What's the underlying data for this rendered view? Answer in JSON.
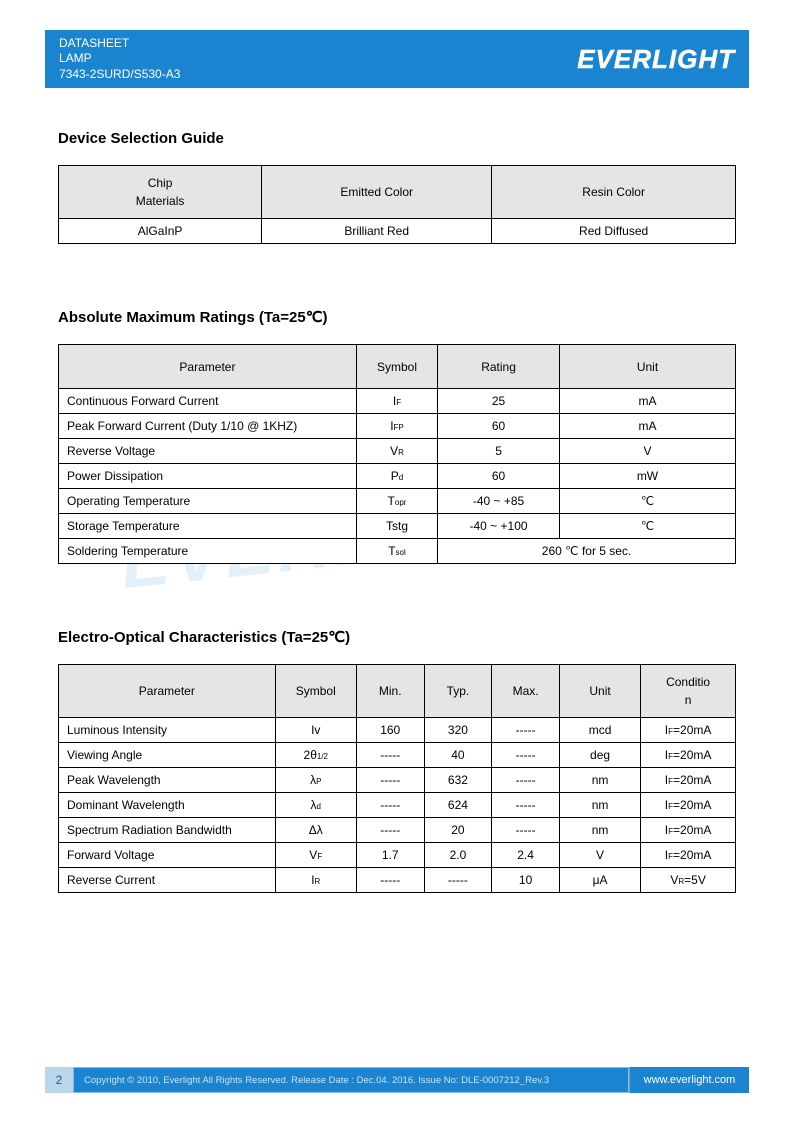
{
  "header": {
    "line1": "DATASHEET",
    "line2": "LAMP",
    "line3": "7343-2SURD/S530-A3",
    "logo": "EVERLIGHT"
  },
  "watermark": "EVERLIGHT",
  "section1": {
    "title": "Device Selection Guide",
    "columns": [
      "Chip\nMaterials",
      "Emitted Color",
      "Resin Color"
    ],
    "rows": [
      [
        "AlGaInP",
        "Brilliant Red",
        "Red Diffused"
      ]
    ],
    "col_widths": [
      "30%",
      "34%",
      "36%"
    ]
  },
  "section2": {
    "title": "Absolute Maximum Ratings (Ta=25℃)",
    "columns": [
      "Parameter",
      "Symbol",
      "Rating",
      "Unit"
    ],
    "rows": [
      {
        "p": "Continuous Forward Current",
        "s": "I",
        "sub": "F",
        "r": "25",
        "u": "mA",
        "span": false
      },
      {
        "p": "Peak Forward Current (Duty 1/10 @ 1KHZ)",
        "s": "I",
        "sub": "FP",
        "r": "60",
        "u": "mA",
        "span": false
      },
      {
        "p": "Reverse Voltage",
        "s": "V",
        "sub": "R",
        "r": "5",
        "u": "V",
        "span": false
      },
      {
        "p": "Power Dissipation",
        "s": "P",
        "sub": "d",
        "r": "60",
        "u": "mW",
        "span": false
      },
      {
        "p": "Operating Temperature",
        "s": "T",
        "sub": "opr",
        "r": "-40 ~ +85",
        "u": "℃",
        "span": false
      },
      {
        "p": "Storage Temperature",
        "s": "Tstg",
        "sub": "",
        "r": "-40 ~ +100",
        "u": "℃",
        "span": false
      },
      {
        "p": "Soldering Temperature",
        "s": "T",
        "sub": "sol",
        "r": "260 ℃ for 5 sec.",
        "u": "",
        "span": true
      }
    ],
    "col_widths": [
      "44%",
      "12%",
      "18%",
      "26%"
    ]
  },
  "section3": {
    "title": "Electro-Optical Characteristics (Ta=25℃)",
    "columns": [
      "Parameter",
      "Symbol",
      "Min.",
      "Typ.",
      "Max.",
      "Unit",
      "Conditio\nn"
    ],
    "rows": [
      {
        "p": "Luminous Intensity",
        "s": "Iv",
        "sub": "",
        "mn": "160",
        "ty": "320",
        "mx": "-----",
        "u": "mcd",
        "c": "I",
        "csub": "F",
        "cv": "=20mA"
      },
      {
        "p": "Viewing Angle",
        "s": "2θ",
        "sub": "1/2",
        "mn": "-----",
        "ty": "40",
        "mx": "-----",
        "u": "deg",
        "c": "I",
        "csub": "F",
        "cv": "=20mA"
      },
      {
        "p": "Peak Wavelength",
        "s": "λ",
        "sub": "P",
        "mn": "-----",
        "ty": "632",
        "mx": "-----",
        "u": "nm",
        "c": "I",
        "csub": "F",
        "cv": "=20mA"
      },
      {
        "p": "Dominant Wavelength",
        "s": "λ",
        "sub": "d",
        "mn": "-----",
        "ty": "624",
        "mx": "-----",
        "u": "nm",
        "c": "I",
        "csub": "F",
        "cv": "=20mA"
      },
      {
        "p": "Spectrum Radiation Bandwidth",
        "s": "Δλ",
        "sub": "",
        "mn": "-----",
        "ty": "20",
        "mx": "-----",
        "u": "nm",
        "c": "I",
        "csub": "F",
        "cv": "=20mA"
      },
      {
        "p": "Forward Voltage",
        "s": "V",
        "sub": "F",
        "mn": "1.7",
        "ty": "2.0",
        "mx": "2.4",
        "u": "V",
        "c": "I",
        "csub": "F",
        "cv": "=20mA"
      },
      {
        "p": "Reverse Current",
        "s": "I",
        "sub": "R",
        "mn": "-----",
        "ty": "-----",
        "mx": "10",
        "u": "μA",
        "c": "V",
        "csub": "R",
        "cv": "=5V"
      }
    ],
    "col_widths": [
      "32%",
      "12%",
      "10%",
      "10%",
      "10%",
      "12%",
      "14%"
    ]
  },
  "footer": {
    "page": "2",
    "copyright": "Copyright © 2010, Everlight All Rights Reserved. Release Date : Dec.04. 2016. Issue No: DLE-0007212_Rev.3",
    "website": "www.everlight.com"
  },
  "colors": {
    "brand": "#1a84d0",
    "header_grey": "#e5e5e5",
    "border": "#000000",
    "bg": "#ffffff"
  }
}
